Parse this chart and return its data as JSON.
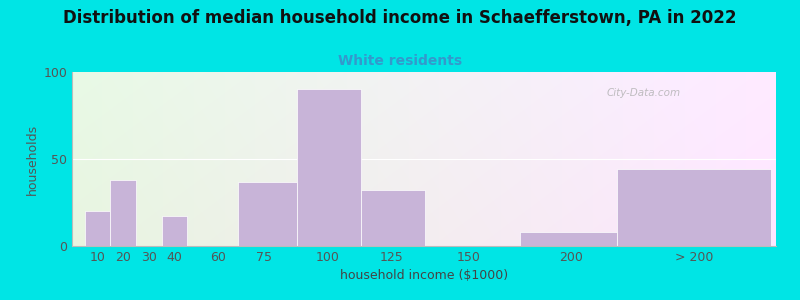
{
  "title": "Distribution of median household income in Schaefferstown, PA in 2022",
  "subtitle": "White residents",
  "xlabel": "household income ($1000)",
  "ylabel": "households",
  "bar_color": "#c8b4d8",
  "background_color": "#00e5e5",
  "title_fontsize": 12,
  "subtitle_fontsize": 10,
  "subtitle_color": "#3399cc",
  "values": [
    20,
    38,
    0,
    17,
    0,
    37,
    90,
    32,
    0,
    8,
    44
  ],
  "bar_lefts": [
    5,
    15,
    25,
    35,
    50,
    65,
    88,
    113,
    138,
    175,
    213
  ],
  "bar_widths": [
    10,
    10,
    10,
    10,
    15,
    23,
    25,
    25,
    37,
    38,
    60
  ],
  "ylim": [
    0,
    100
  ],
  "yticks": [
    0,
    50,
    100
  ],
  "xtick_labels": [
    "10",
    "20",
    "30",
    "40",
    "60",
    "75",
    "100",
    "125",
    "150",
    "200",
    "> 200"
  ],
  "xtick_positions": [
    10,
    20,
    30,
    40,
    57,
    75,
    100,
    125,
    155,
    195,
    243
  ],
  "xlim": [
    0,
    275
  ],
  "watermark": "City-Data.com"
}
